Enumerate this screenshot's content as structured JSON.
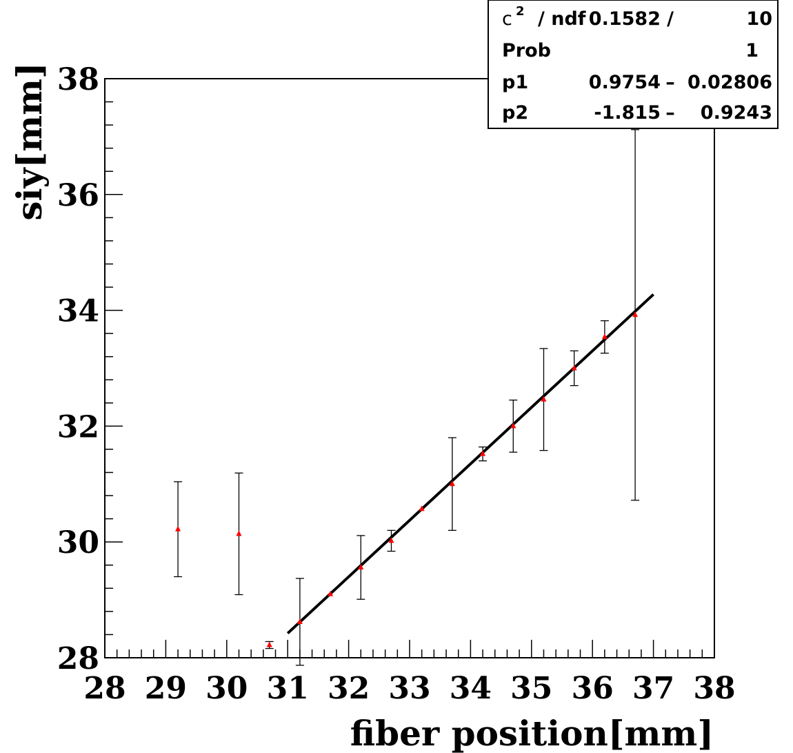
{
  "chart_data": {
    "type": "scatter",
    "title": "",
    "xlabel": "fiber position[mm]",
    "ylabel": "siy[mm]",
    "xlim": [
      28,
      38
    ],
    "ylim": [
      28,
      38
    ],
    "x_ticks": [
      "28",
      "29",
      "30",
      "31",
      "32",
      "33",
      "34",
      "35",
      "36",
      "37",
      "38"
    ],
    "y_ticks": [
      "28",
      "30",
      "32",
      "34",
      "36",
      "38"
    ],
    "series": [
      {
        "marker": "triangle",
        "color": "#ff0000",
        "points": [
          {
            "x": 29.2,
            "y": 30.22,
            "ey_low": 0.82,
            "ey_high": 0.82
          },
          {
            "x": 30.2,
            "y": 30.14,
            "ey_low": 1.05,
            "ey_high": 1.05
          },
          {
            "x": 30.7,
            "y": 28.22,
            "ey_low": 0.06,
            "ey_high": 0.06
          },
          {
            "x": 31.2,
            "y": 28.62,
            "ey_low": 0.75,
            "ey_high": 0.75
          },
          {
            "x": 31.7,
            "y": 29.1,
            "ey_low": 0.0,
            "ey_high": 0.0
          },
          {
            "x": 32.2,
            "y": 29.56,
            "ey_low": 0.55,
            "ey_high": 0.55
          },
          {
            "x": 32.7,
            "y": 30.02,
            "ey_low": 0.18,
            "ey_high": 0.18
          },
          {
            "x": 33.2,
            "y": 30.57,
            "ey_low": 0.0,
            "ey_high": 0.0
          },
          {
            "x": 33.7,
            "y": 31.0,
            "ey_low": 0.8,
            "ey_high": 0.8
          },
          {
            "x": 34.2,
            "y": 31.52,
            "ey_low": 0.12,
            "ey_high": 0.12
          },
          {
            "x": 34.7,
            "y": 32.0,
            "ey_low": 0.45,
            "ey_high": 0.45
          },
          {
            "x": 35.2,
            "y": 32.46,
            "ey_low": 0.88,
            "ey_high": 0.88
          },
          {
            "x": 35.7,
            "y": 33.0,
            "ey_low": 0.3,
            "ey_high": 0.3
          },
          {
            "x": 36.2,
            "y": 33.54,
            "ey_low": 0.28,
            "ey_high": 0.28
          },
          {
            "x": 36.7,
            "y": 33.92,
            "ey_low": 3.2,
            "ey_high": 3.2
          }
        ]
      }
    ],
    "fit": {
      "type": "line",
      "x_range": [
        31.0,
        37.0
      ],
      "p1": 0.9754,
      "p2": -1.815,
      "color": "#000000"
    },
    "stats_box": {
      "position": "top-right",
      "rows": [
        {
          "label": "c",
          "superscript": "2",
          "label_rest": "/  ndf",
          "value": "0.1582",
          "sep": "/",
          "error": "10"
        },
        {
          "label": "Prob",
          "value": "1"
        },
        {
          "label": "p1",
          "value": "0.9754",
          "sep": "–",
          "error": "0.02806"
        },
        {
          "label": "p2",
          "value": "-1.815",
          "sep": "–",
          "error": "0.9243"
        }
      ]
    },
    "grid": false
  }
}
